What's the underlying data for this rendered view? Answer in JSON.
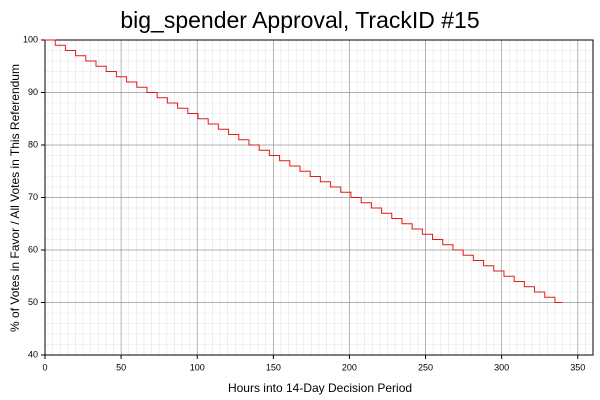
{
  "chart_data": {
    "type": "line",
    "step": "post",
    "title": "big_spender Approval, TrackID #15",
    "x_label": "Hours into 14-Day Decision Period",
    "y_label": "% of Votes in Favor / All Votes in This Referendum",
    "x": [
      0,
      6.7,
      13.4,
      20.1,
      26.8,
      33.5,
      40.2,
      46.9,
      53.6,
      60.3,
      67,
      73.7,
      80.4,
      87.1,
      93.8,
      100.5,
      107.2,
      113.9,
      120.6,
      127.3,
      134,
      140.7,
      147.4,
      154.1,
      160.8,
      167.5,
      174.2,
      180.9,
      187.6,
      194.3,
      201,
      207.7,
      214.4,
      221.1,
      227.8,
      234.5,
      241.2,
      247.9,
      254.6,
      261.3,
      268,
      274.7,
      281.4,
      288.1,
      294.8,
      301.5,
      308.2,
      314.9,
      321.6,
      328.3,
      335,
      340
    ],
    "series": [
      {
        "color": "#e31a1c",
        "values": [
          100,
          99,
          98,
          97,
          96,
          95,
          94,
          93,
          92,
          91,
          90,
          89,
          88,
          87,
          86,
          85,
          84,
          83,
          82,
          81,
          80,
          79,
          78,
          77,
          76,
          75,
          74,
          73,
          72,
          71,
          70,
          69,
          68,
          67,
          66,
          65,
          64,
          63,
          62,
          61,
          60,
          59,
          58,
          57,
          56,
          55,
          54,
          53,
          52,
          51,
          50,
          50
        ]
      }
    ],
    "xlim": [
      0,
      360
    ],
    "xticks": [
      0,
      50,
      100,
      150,
      200,
      250,
      300,
      350
    ],
    "ylim": [
      40,
      100
    ],
    "yticks": [
      40,
      50,
      60,
      70,
      80,
      90,
      100
    ],
    "grid": true,
    "minor_grid": true
  }
}
